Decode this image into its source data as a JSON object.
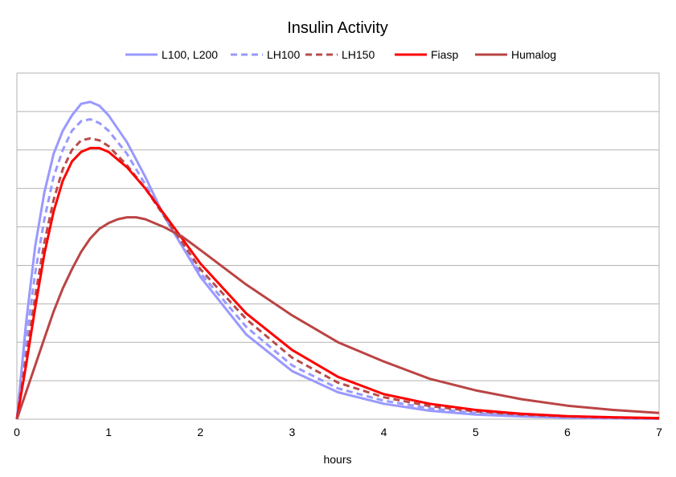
{
  "chart_data": {
    "type": "line",
    "title": "Insulin Activity",
    "xlabel": "hours",
    "ylabel": "",
    "xlim": [
      0,
      7
    ],
    "ylim": [
      0,
      9
    ],
    "x_ticks": [
      "0",
      "1",
      "2",
      "3",
      "4",
      "5",
      "6",
      "7"
    ],
    "y_gridlines": 9,
    "y_tick_labels_visible": false,
    "grid": "horizontal",
    "legend_position": "top-center",
    "series": [
      {
        "name": "L100, L200",
        "color": "#9999ff",
        "style": "solid",
        "points": [
          [
            0,
            0
          ],
          [
            0.1,
            2.5
          ],
          [
            0.2,
            4.5
          ],
          [
            0.3,
            5.9
          ],
          [
            0.4,
            6.9
          ],
          [
            0.5,
            7.5
          ],
          [
            0.6,
            7.9
          ],
          [
            0.7,
            8.2
          ],
          [
            0.8,
            8.25
          ],
          [
            0.9,
            8.15
          ],
          [
            1.0,
            7.9
          ],
          [
            1.2,
            7.2
          ],
          [
            1.4,
            6.3
          ],
          [
            1.6,
            5.3
          ],
          [
            1.8,
            4.5
          ],
          [
            2.0,
            3.7
          ],
          [
            2.5,
            2.2
          ],
          [
            3.0,
            1.25
          ],
          [
            3.5,
            0.7
          ],
          [
            4.0,
            0.4
          ],
          [
            4.5,
            0.22
          ],
          [
            5.0,
            0.12
          ],
          [
            5.5,
            0.07
          ],
          [
            6.0,
            0.04
          ],
          [
            6.5,
            0.02
          ],
          [
            7.0,
            0.01
          ]
        ]
      },
      {
        "name": "LH100",
        "color": "#9999ff",
        "style": "dashed",
        "points": [
          [
            0,
            0
          ],
          [
            0.1,
            2.0
          ],
          [
            0.2,
            3.8
          ],
          [
            0.3,
            5.2
          ],
          [
            0.4,
            6.3
          ],
          [
            0.5,
            7.0
          ],
          [
            0.6,
            7.5
          ],
          [
            0.7,
            7.75
          ],
          [
            0.8,
            7.8
          ],
          [
            0.9,
            7.7
          ],
          [
            1.0,
            7.5
          ],
          [
            1.2,
            6.9
          ],
          [
            1.4,
            6.1
          ],
          [
            1.6,
            5.3
          ],
          [
            1.8,
            4.5
          ],
          [
            2.0,
            3.8
          ],
          [
            2.5,
            2.4
          ],
          [
            3.0,
            1.4
          ],
          [
            3.5,
            0.8
          ],
          [
            4.0,
            0.48
          ],
          [
            4.5,
            0.28
          ],
          [
            5.0,
            0.16
          ],
          [
            5.5,
            0.09
          ],
          [
            6.0,
            0.05
          ],
          [
            6.5,
            0.03
          ],
          [
            7.0,
            0.02
          ]
        ]
      },
      {
        "name": "LH150",
        "color": "#b84c4c",
        "style": "dashed",
        "points": [
          [
            0,
            0
          ],
          [
            0.1,
            1.6
          ],
          [
            0.2,
            3.2
          ],
          [
            0.3,
            4.6
          ],
          [
            0.4,
            5.7
          ],
          [
            0.5,
            6.5
          ],
          [
            0.6,
            7.0
          ],
          [
            0.7,
            7.25
          ],
          [
            0.8,
            7.3
          ],
          [
            0.9,
            7.25
          ],
          [
            1.0,
            7.1
          ],
          [
            1.2,
            6.6
          ],
          [
            1.4,
            6.0
          ],
          [
            1.6,
            5.3
          ],
          [
            1.8,
            4.6
          ],
          [
            2.0,
            3.9
          ],
          [
            2.5,
            2.6
          ],
          [
            3.0,
            1.6
          ],
          [
            3.5,
            0.95
          ],
          [
            4.0,
            0.57
          ],
          [
            4.5,
            0.34
          ],
          [
            5.0,
            0.2
          ],
          [
            5.5,
            0.12
          ],
          [
            6.0,
            0.07
          ],
          [
            6.5,
            0.04
          ],
          [
            7.0,
            0.02
          ]
        ]
      },
      {
        "name": "Fiasp",
        "color": "#ff0000",
        "style": "solid",
        "points": [
          [
            0,
            0
          ],
          [
            0.1,
            1.4
          ],
          [
            0.2,
            2.9
          ],
          [
            0.3,
            4.3
          ],
          [
            0.4,
            5.4
          ],
          [
            0.5,
            6.2
          ],
          [
            0.6,
            6.7
          ],
          [
            0.7,
            6.95
          ],
          [
            0.8,
            7.05
          ],
          [
            0.9,
            7.05
          ],
          [
            1.0,
            6.95
          ],
          [
            1.2,
            6.55
          ],
          [
            1.4,
            6.0
          ],
          [
            1.6,
            5.35
          ],
          [
            1.8,
            4.7
          ],
          [
            2.0,
            4.05
          ],
          [
            2.5,
            2.75
          ],
          [
            3.0,
            1.8
          ],
          [
            3.5,
            1.1
          ],
          [
            4.0,
            0.65
          ],
          [
            4.5,
            0.4
          ],
          [
            5.0,
            0.24
          ],
          [
            5.5,
            0.14
          ],
          [
            6.0,
            0.08
          ],
          [
            6.5,
            0.05
          ],
          [
            7.0,
            0.03
          ]
        ]
      },
      {
        "name": "Humalog",
        "color": "#bb4444",
        "style": "solid",
        "points": [
          [
            0,
            0
          ],
          [
            0.1,
            0.7
          ],
          [
            0.2,
            1.4
          ],
          [
            0.3,
            2.1
          ],
          [
            0.4,
            2.8
          ],
          [
            0.5,
            3.4
          ],
          [
            0.6,
            3.9
          ],
          [
            0.7,
            4.35
          ],
          [
            0.8,
            4.7
          ],
          [
            0.9,
            4.95
          ],
          [
            1.0,
            5.1
          ],
          [
            1.1,
            5.2
          ],
          [
            1.2,
            5.25
          ],
          [
            1.3,
            5.25
          ],
          [
            1.4,
            5.2
          ],
          [
            1.6,
            5.0
          ],
          [
            1.8,
            4.75
          ],
          [
            2.0,
            4.4
          ],
          [
            2.5,
            3.5
          ],
          [
            3.0,
            2.7
          ],
          [
            3.5,
            2.0
          ],
          [
            4.0,
            1.5
          ],
          [
            4.5,
            1.05
          ],
          [
            5.0,
            0.75
          ],
          [
            5.5,
            0.52
          ],
          [
            6.0,
            0.35
          ],
          [
            6.5,
            0.24
          ],
          [
            7.0,
            0.16
          ]
        ]
      }
    ]
  }
}
